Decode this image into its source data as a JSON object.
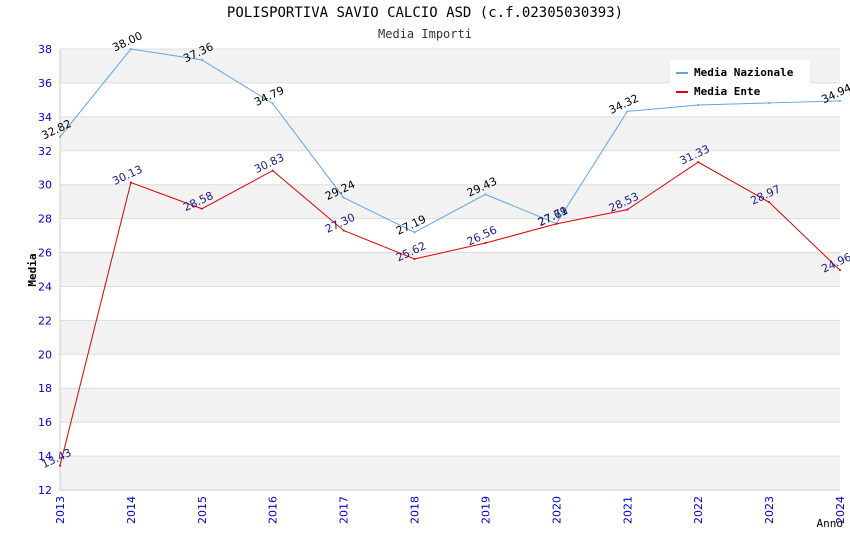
{
  "chart_data": {
    "type": "line",
    "title": "POLISPORTIVA SAVIO CALCIO ASD (c.f.02305030393)",
    "subtitle": "Media Importi",
    "xlabel": "Anno",
    "ylabel": "Media",
    "categories": [
      "2013",
      "2014",
      "2015",
      "2016",
      "2017",
      "2018",
      "2019",
      "2020",
      "2021",
      "2022",
      "2023",
      "2024"
    ],
    "ylim": [
      12,
      38
    ],
    "yticks": [
      12,
      14,
      16,
      18,
      20,
      22,
      24,
      26,
      28,
      30,
      32,
      34,
      36,
      38
    ],
    "legend_position": "top-right",
    "series": [
      {
        "name": "Media Nazionale",
        "color": "#5ea5e6",
        "label_color": "#000000",
        "values": [
          32.82,
          38.0,
          37.36,
          34.79,
          29.24,
          27.19,
          29.43,
          27.71,
          34.32,
          34.7,
          34.82,
          34.94
        ],
        "labels": [
          "32.82",
          "38.00",
          "37.36",
          "34.79",
          "29.24",
          "27.19",
          "29.43",
          "27.71",
          "34.32",
          "",
          "",
          "34.94"
        ]
      },
      {
        "name": "Media Ente",
        "color": "#e00000",
        "label_color": "#1a1a8c",
        "values": [
          13.43,
          30.13,
          28.58,
          30.83,
          27.3,
          25.62,
          26.56,
          27.69,
          28.53,
          31.33,
          28.97,
          24.96
        ],
        "labels": [
          "13.43",
          "30.13",
          "28.58",
          "30.83",
          "27.30",
          "25.62",
          "26.56",
          "27.69",
          "28.53",
          "31.33",
          "28.97",
          "24.96"
        ]
      }
    ]
  }
}
